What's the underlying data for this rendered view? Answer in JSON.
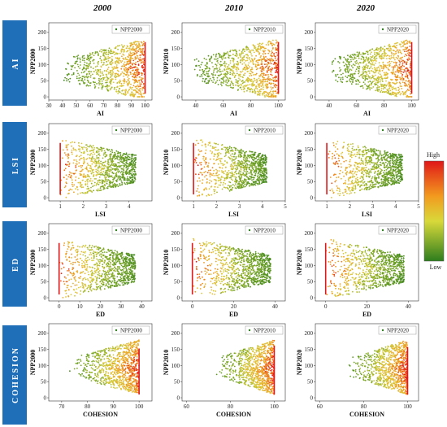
{
  "colors": {
    "row_label_bg": "#1f6fb8",
    "point_low": "#2e7d1e",
    "point_mid": "#e0d03a",
    "point_high": "#e01818"
  },
  "years": [
    "2000",
    "2010",
    "2020"
  ],
  "colorbar": {
    "high_label": "High",
    "low_label": "Low"
  },
  "chart_data": [
    {
      "type": "scatter",
      "row_label": "AI",
      "year": "2000",
      "xlabel": "AI",
      "ylabel": "NPP2000",
      "legend": "NPP2000",
      "xlim": [
        30,
        105
      ],
      "ylim": [
        -10,
        230
      ],
      "xticks": [
        30,
        40,
        50,
        60,
        70,
        80,
        90,
        100
      ],
      "yticks": [
        0,
        50,
        100,
        150,
        200
      ],
      "cloud": {
        "xmin": 40,
        "xmax": 100,
        "ymin": 0,
        "ymax": 200,
        "dense_x": 100,
        "shape": "wedge_left"
      },
      "grid": false,
      "legend_position": "top-right"
    },
    {
      "type": "scatter",
      "row_label": "AI",
      "year": "2010",
      "xlabel": "AI",
      "ylabel": "NPP2010",
      "legend": "NPP2010",
      "xlim": [
        30,
        105
      ],
      "ylim": [
        -10,
        230
      ],
      "xticks": [
        40,
        60,
        80,
        100
      ],
      "yticks": [
        0,
        50,
        100,
        150,
        200
      ],
      "cloud": {
        "xmin": 38,
        "xmax": 100,
        "ymin": 0,
        "ymax": 200,
        "dense_x": 100,
        "shape": "wedge_left"
      },
      "grid": false,
      "legend_position": "top-right"
    },
    {
      "type": "scatter",
      "row_label": "AI",
      "year": "2020",
      "xlabel": "AI",
      "ylabel": "NPP2020",
      "legend": "NPP2020",
      "xlim": [
        30,
        105
      ],
      "ylim": [
        -10,
        230
      ],
      "xticks": [
        40,
        60,
        80,
        100
      ],
      "yticks": [
        0,
        50,
        100,
        150,
        200
      ],
      "cloud": {
        "xmin": 40,
        "xmax": 100,
        "ymin": 0,
        "ymax": 200,
        "dense_x": 100,
        "shape": "wedge_left"
      },
      "grid": false,
      "legend_position": "top-right"
    },
    {
      "type": "scatter",
      "row_label": "LSI",
      "year": "2000",
      "xlabel": "LSI",
      "ylabel": "NPP2000",
      "legend": "NPP2000",
      "xlim": [
        0.5,
        5
      ],
      "ylim": [
        -10,
        230
      ],
      "xticks": [
        1,
        2,
        3,
        4
      ],
      "yticks": [
        0,
        50,
        100,
        150,
        200
      ],
      "cloud": {
        "xmin": 1,
        "xmax": 4.3,
        "ymin": 0,
        "ymax": 200,
        "dense_x": 1,
        "shape": "wedge_right"
      },
      "grid": false,
      "legend_position": "top-right"
    },
    {
      "type": "scatter",
      "row_label": "LSI",
      "year": "2010",
      "xlabel": "LSI",
      "ylabel": "NPP2010",
      "legend": "NPP2010",
      "xlim": [
        0.5,
        5
      ],
      "ylim": [
        -10,
        230
      ],
      "xticks": [
        1,
        2,
        3,
        4,
        5
      ],
      "yticks": [
        0,
        50,
        100,
        150,
        200
      ],
      "cloud": {
        "xmin": 1,
        "xmax": 4.2,
        "ymin": 0,
        "ymax": 200,
        "dense_x": 1,
        "shape": "wedge_right"
      },
      "grid": false,
      "legend_position": "top-right"
    },
    {
      "type": "scatter",
      "row_label": "LSI",
      "year": "2020",
      "xlabel": "LSI",
      "ylabel": "NPP2020",
      "legend": "NPP2020",
      "xlim": [
        0.5,
        5
      ],
      "ylim": [
        -10,
        230
      ],
      "xticks": [
        1,
        2,
        3,
        4,
        5
      ],
      "yticks": [
        0,
        50,
        100,
        150,
        200
      ],
      "cloud": {
        "xmin": 1,
        "xmax": 4.3,
        "ymin": 0,
        "ymax": 200,
        "dense_x": 1,
        "shape": "wedge_right"
      },
      "grid": false,
      "legend_position": "top-right"
    },
    {
      "type": "scatter",
      "row_label": "ED",
      "year": "2000",
      "xlabel": "ED",
      "ylabel": "NPP2000",
      "legend": "NPP2000",
      "xlim": [
        -5,
        45
      ],
      "ylim": [
        -10,
        230
      ],
      "xticks": [
        0,
        10,
        20,
        30,
        40
      ],
      "yticks": [
        0,
        50,
        100,
        150,
        200
      ],
      "cloud": {
        "xmin": 0,
        "xmax": 37,
        "ymin": 0,
        "ymax": 200,
        "dense_x": 0,
        "shape": "wedge_right"
      },
      "grid": false,
      "legend_position": "top-right"
    },
    {
      "type": "scatter",
      "row_label": "ED",
      "year": "2010",
      "xlabel": "ED",
      "ylabel": "NPP2010",
      "legend": "NPP2010",
      "xlim": [
        -5,
        45
      ],
      "ylim": [
        -10,
        230
      ],
      "xticks": [
        0,
        20,
        40
      ],
      "yticks": [
        0,
        50,
        100,
        150,
        200
      ],
      "cloud": {
        "xmin": 0,
        "xmax": 38,
        "ymin": 0,
        "ymax": 200,
        "dense_x": 0,
        "shape": "wedge_right"
      },
      "grid": false,
      "legend_position": "top-right"
    },
    {
      "type": "scatter",
      "row_label": "ED",
      "year": "2020",
      "xlabel": "ED",
      "ylabel": "NPP2020",
      "legend": "NPP2020",
      "xlim": [
        -5,
        45
      ],
      "ylim": [
        -10,
        230
      ],
      "xticks": [
        0,
        20,
        40
      ],
      "yticks": [
        0,
        50,
        100,
        150,
        200
      ],
      "cloud": {
        "xmin": 0,
        "xmax": 38,
        "ymin": 0,
        "ymax": 200,
        "dense_x": 0,
        "shape": "wedge_right"
      },
      "grid": false,
      "legend_position": "top-right"
    },
    {
      "type": "scatter",
      "row_label": "COHESION",
      "year": "2000",
      "xlabel": "COHESION",
      "ylabel": "NPP2000",
      "legend": "NPP2000",
      "xlim": [
        65,
        105
      ],
      "ylim": [
        -10,
        230
      ],
      "xticks": [
        70,
        80,
        90,
        100
      ],
      "yticks": [
        0,
        50,
        100,
        150,
        200
      ],
      "cloud": {
        "xmin": 72,
        "xmax": 100,
        "ymin": 10,
        "ymax": 180,
        "dense_x": 100,
        "shape": "blob_right"
      },
      "grid": false,
      "legend_position": "top-right"
    },
    {
      "type": "scatter",
      "row_label": "COHESION",
      "year": "2010",
      "xlabel": "COHESION",
      "ylabel": "NPP2010",
      "legend": "NPP2010",
      "xlim": [
        58,
        105
      ],
      "ylim": [
        -10,
        230
      ],
      "xticks": [
        60,
        80,
        100
      ],
      "yticks": [
        0,
        50,
        100,
        150,
        200
      ],
      "cloud": {
        "xmin": 72,
        "xmax": 100,
        "ymin": 10,
        "ymax": 190,
        "dense_x": 100,
        "shape": "blob_right"
      },
      "grid": false,
      "legend_position": "top-right"
    },
    {
      "type": "scatter",
      "row_label": "COHESION",
      "year": "2020",
      "xlabel": "COHESION",
      "ylabel": "NPP2020",
      "legend": "NPP2020",
      "xlim": [
        58,
        105
      ],
      "ylim": [
        -10,
        230
      ],
      "xticks": [
        60,
        80,
        100
      ],
      "yticks": [
        0,
        50,
        100,
        150,
        200
      ],
      "cloud": {
        "xmin": 72,
        "xmax": 100,
        "ymin": 10,
        "ymax": 185,
        "dense_x": 100,
        "shape": "blob_right"
      },
      "grid": false,
      "legend_position": "top-right"
    }
  ]
}
